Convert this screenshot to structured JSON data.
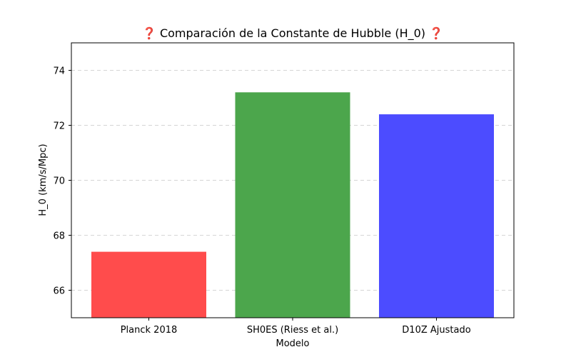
{
  "chart_data": {
    "type": "bar",
    "title": "❓ Comparación de la Constante de Hubble (H_0) ❓",
    "xlabel": "Modelo",
    "ylabel": "H_0 (km/s/Mpc)",
    "categories": [
      "Planck 2018",
      "SH0ES (Riess et al.)",
      "D10Z Ajustado"
    ],
    "values": [
      67.4,
      73.2,
      72.4
    ],
    "colors": [
      "#ff4c4c",
      "#4ca64c",
      "#4c4cff"
    ],
    "ylim": [
      65,
      75
    ],
    "yticks": [
      66,
      68,
      70,
      72,
      74
    ],
    "ytick_labels": [
      "66",
      "68",
      "70",
      "72",
      "74"
    ],
    "grid": "y-dashed",
    "legend": "none"
  }
}
